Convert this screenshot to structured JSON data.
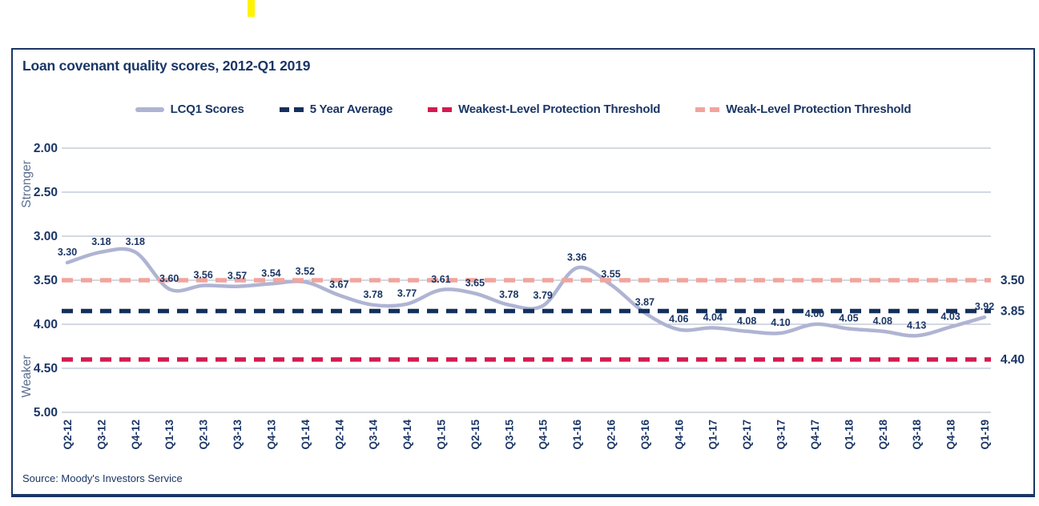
{
  "header": {
    "title": "Loan covenant quality scores, 2012-Q1 2019"
  },
  "footer": {
    "source": "Source: Moody's Investors Service"
  },
  "legend": [
    {
      "label": "LCQ1 Scores",
      "swatch": "line-solid",
      "color": "#AFB4D3"
    },
    {
      "label": "5 Year Average",
      "swatch": "line-dashed",
      "color": "#14305C"
    },
    {
      "label": "Weakest-Level Protection Threshold",
      "swatch": "line-dashed",
      "color": "#D41A51"
    },
    {
      "label": "Weak-Level Protection Threshold",
      "swatch": "line-dashed",
      "color": "#F2A49C"
    }
  ],
  "chart_data": {
    "type": "line",
    "title": "Loan covenant quality scores, 2012-Q1 2019",
    "grid": true,
    "legend_position": "top",
    "y_axis": {
      "inverted": true,
      "min": 2.0,
      "max": 5.0,
      "tick_step": 0.5,
      "ticks": [
        "2.00",
        "2.50",
        "3.00",
        "3.50",
        "4.00",
        "4.50",
        "5.00"
      ],
      "direction_label_top": "Stronger",
      "direction_label_bottom": "Weaker"
    },
    "categories": [
      "Q2-12",
      "Q3-12",
      "Q4-12",
      "Q1-13",
      "Q2-13",
      "Q3-13",
      "Q4-13",
      "Q1-14",
      "Q2-14",
      "Q3-14",
      "Q4-14",
      "Q1-15",
      "Q2-15",
      "Q3-15",
      "Q4-15",
      "Q1-16",
      "Q2-16",
      "Q3-16",
      "Q4-16",
      "Q1-17",
      "Q2-17",
      "Q3-17",
      "Q4-17",
      "Q1-18",
      "Q2-18",
      "Q3-18",
      "Q4-18",
      "Q1-19"
    ],
    "series": [
      {
        "name": "LCQ1 Scores",
        "style": "solid",
        "color": "#AFB4D3",
        "values": [
          3.3,
          3.18,
          3.18,
          3.6,
          3.56,
          3.57,
          3.54,
          3.52,
          3.67,
          3.78,
          3.77,
          3.61,
          3.65,
          3.78,
          3.79,
          3.36,
          3.55,
          3.87,
          4.06,
          4.04,
          4.08,
          4.1,
          4.0,
          4.05,
          4.08,
          4.13,
          4.03,
          3.92
        ],
        "point_labels": [
          "3.30",
          "3.18",
          "3.18",
          "3.60",
          "3.56",
          "3.57",
          "3.54",
          "3.52",
          "3.67",
          "3.78",
          "3.77",
          "3.61",
          "3.65",
          "3.78",
          "3.79",
          "3.36",
          "3.55",
          "3.87",
          "4.06",
          "4.04",
          "4.08",
          "4.10",
          "4.00",
          "4.05",
          "4.08",
          "4.13",
          "4.03",
          "3.92"
        ]
      }
    ],
    "reference_lines": [
      {
        "name": "Weak-Level Protection Threshold",
        "value": 3.5,
        "right_label": "3.50",
        "color": "#F2A49C",
        "style": "dashed"
      },
      {
        "name": "5 Year Average",
        "value": 3.85,
        "right_label": "3.85",
        "color": "#14305C",
        "style": "dashed"
      },
      {
        "name": "Weakest-Level Protection Threshold",
        "value": 4.4,
        "right_label": "4.40",
        "color": "#D41A51",
        "style": "dashed"
      }
    ]
  },
  "colors": {
    "navy_text": "#1B3666",
    "grid_line": "#A8B0C6",
    "direction_label": "#5C6E90",
    "yellow_marker": "#FFF200",
    "card_border": "#1B3666"
  }
}
